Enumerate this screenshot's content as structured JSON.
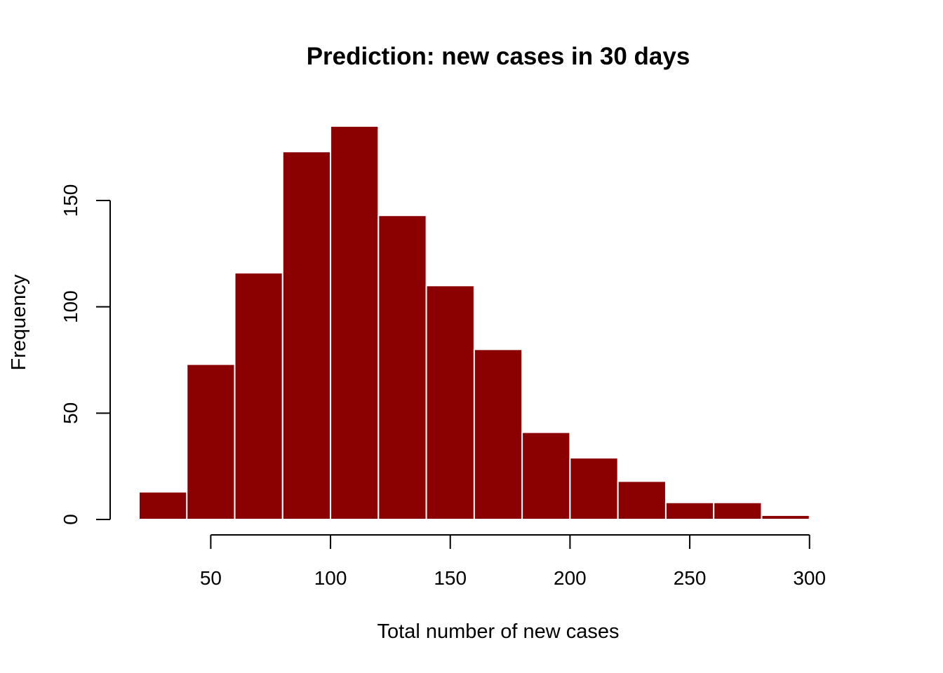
{
  "chart_data": {
    "type": "bar",
    "title": "Prediction: new cases in 30 days",
    "xlabel": "Total number of new cases",
    "ylabel": "Frequency",
    "bar_color": "#8b0000",
    "bar_border_color": "#ffffff",
    "grid": false,
    "legend": "none",
    "xlim": [
      20,
      320
    ],
    "ylim": [
      0,
      185
    ],
    "xticks": [
      50,
      100,
      150,
      200,
      250,
      300
    ],
    "yticks": [
      0,
      50,
      100,
      150
    ],
    "bins": [
      {
        "x0": 20,
        "x1": 40,
        "value": 13
      },
      {
        "x0": 40,
        "x1": 60,
        "value": 73
      },
      {
        "x0": 60,
        "x1": 80,
        "value": 116
      },
      {
        "x0": 80,
        "x1": 100,
        "value": 173
      },
      {
        "x0": 100,
        "x1": 120,
        "value": 185
      },
      {
        "x0": 120,
        "x1": 140,
        "value": 143
      },
      {
        "x0": 140,
        "x1": 160,
        "value": 110
      },
      {
        "x0": 160,
        "x1": 180,
        "value": 80
      },
      {
        "x0": 180,
        "x1": 200,
        "value": 41
      },
      {
        "x0": 200,
        "x1": 220,
        "value": 29
      },
      {
        "x0": 220,
        "x1": 240,
        "value": 18
      },
      {
        "x0": 240,
        "x1": 260,
        "value": 8
      },
      {
        "x0": 260,
        "x1": 280,
        "value": 8
      },
      {
        "x0": 280,
        "x1": 300,
        "value": 2
      },
      {
        "x0": 300,
        "x1": 320,
        "value": 0.3
      }
    ]
  }
}
